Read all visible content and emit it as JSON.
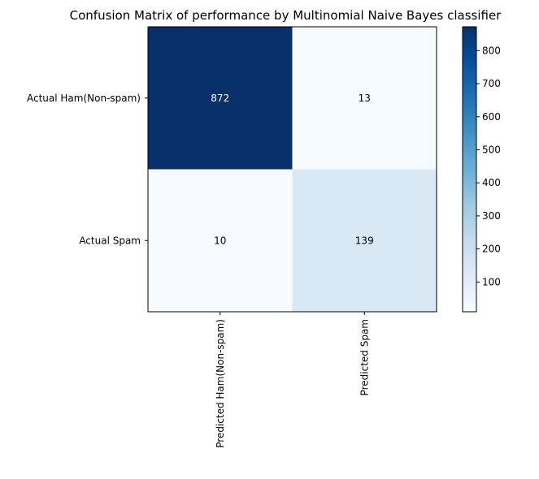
{
  "chart_data": {
    "type": "heatmap",
    "title": "Confusion Matrix of performance by Multinomial Naive Bayes classifier",
    "row_labels": [
      "Actual Ham(Non-spam)",
      "Actual Spam"
    ],
    "col_labels": [
      "Predicted Ham(Non-spam)",
      "Predicted Spam"
    ],
    "values": [
      [
        872,
        13
      ],
      [
        10,
        139
      ]
    ],
    "colormap": "Blues",
    "colorbar": {
      "min": 10,
      "max": 872,
      "ticks": [
        "100",
        "200",
        "300",
        "400",
        "500",
        "600",
        "700",
        "800"
      ]
    },
    "value_text_colors": {
      "dark_cell": "#ffffff",
      "light_cell": "#000000"
    }
  }
}
